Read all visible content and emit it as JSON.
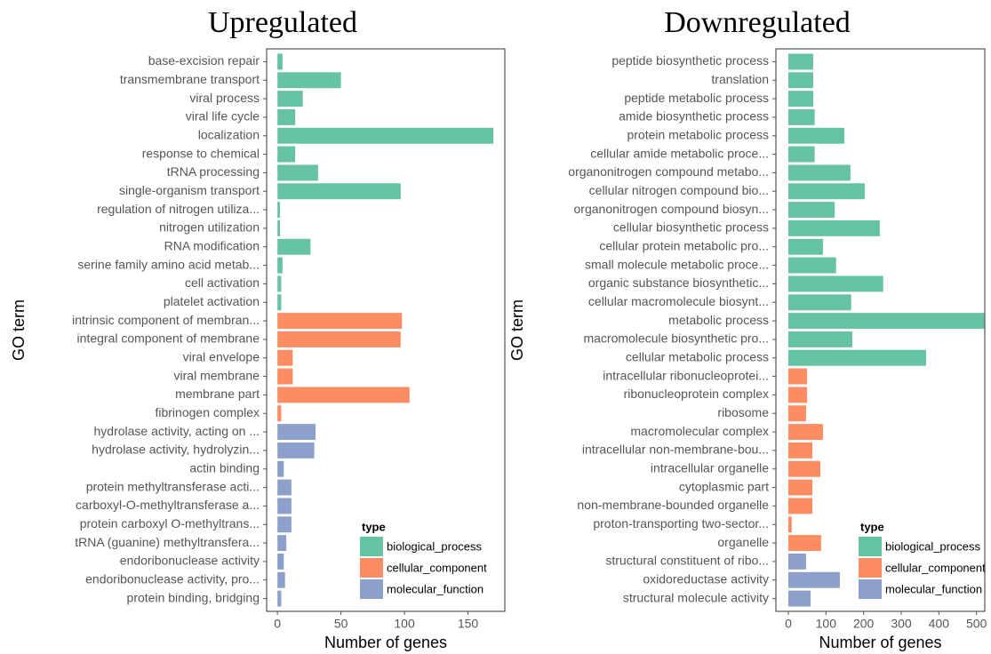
{
  "chart_data": [
    {
      "type": "barh",
      "title": "Upregulated",
      "xlabel": "Number of genes",
      "ylabel": "GO term",
      "categories": [
        "base-excision repair",
        "transmembrane transport",
        "viral process",
        "viral life cycle",
        "localization",
        "response to chemical",
        "tRNA processing",
        "single-organism transport",
        "regulation of nitrogen utiliza...",
        "nitrogen utilization",
        "RNA modification",
        "serine family amino acid metab...",
        "cell activation",
        "platelet activation",
        "intrinsic component of membran...",
        "integral component of membrane",
        "viral envelope",
        "viral membrane",
        "membrane part",
        "fibrinogen complex",
        "hydrolase activity, acting on ...",
        "hydrolase activity, hydrolyzin...",
        "actin binding",
        "protein methyltransferase acti...",
        "carboxyl-O-methyltransferase a...",
        "protein carboxyl O-methyltrans...",
        "tRNA (guanine) methyltransfera...",
        "endoribonuclease activity",
        "endoribonuclease activity, pro...",
        "protein binding, bridging"
      ],
      "legend_title": "type",
      "legend": "lower right",
      "series": [
        {
          "name": "biological_process",
          "color": "#66c2a5",
          "values": [
            4,
            50,
            20,
            14,
            170,
            14,
            32,
            97,
            2,
            2,
            26,
            4,
            3,
            3,
            null,
            null,
            null,
            null,
            null,
            null,
            null,
            null,
            null,
            null,
            null,
            null,
            null,
            null,
            null,
            null
          ]
        },
        {
          "name": "cellular_component",
          "color": "#fc8d62",
          "values": [
            null,
            null,
            null,
            null,
            null,
            null,
            null,
            null,
            null,
            null,
            null,
            null,
            null,
            null,
            98,
            97,
            12,
            12,
            104,
            3,
            null,
            null,
            null,
            null,
            null,
            null,
            null,
            null,
            null,
            null
          ]
        },
        {
          "name": "molecular_function",
          "color": "#8da0cb",
          "values": [
            null,
            null,
            null,
            null,
            null,
            null,
            null,
            null,
            null,
            null,
            null,
            null,
            null,
            null,
            null,
            null,
            null,
            null,
            null,
            null,
            30,
            29,
            5,
            11,
            11,
            11,
            7,
            5,
            6,
            3
          ]
        }
      ],
      "xlim": [
        -8.5,
        179
      ],
      "xticks": [
        0,
        50,
        100,
        150
      ]
    },
    {
      "type": "barh",
      "title": "Downregulated",
      "xlabel": "Number of genes",
      "ylabel": "GO term",
      "categories": [
        "peptide biosynthetic process",
        "translation",
        "peptide metabolic process",
        "amide biosynthetic process",
        "protein metabolic process",
        "cellular amide metabolic proce...",
        "organonitrogen compound metabo...",
        "cellular nitrogen compound bio...",
        "organonitrogen compound biosyn...",
        "cellular biosynthetic process",
        "cellular protein metabolic pro...",
        "small molecule metabolic proce...",
        "organic substance biosynthetic...",
        "cellular macromolecule biosynt...",
        "metabolic process",
        "macromolecule biosynthetic pro...",
        "cellular metabolic process",
        "intracellular ribonucleoprotei...",
        "ribonucleoprotein complex",
        "ribosome",
        "macromolecular complex",
        "intracellular non-membrane-bou...",
        "intracellular organelle",
        "cytoplasmic part",
        "non-membrane-bounded organelle",
        "proton-transporting two-sector...",
        "organelle",
        "structural constituent of ribo...",
        "oxidoreductase activity",
        "structural molecule activity"
      ],
      "legend_title": "type",
      "legend": "lower right",
      "series": [
        {
          "name": "biological_process",
          "color": "#66c2a5",
          "values": [
            66,
            66,
            66,
            70,
            149,
            70,
            165,
            203,
            123,
            243,
            92,
            127,
            252,
            167,
            521,
            170,
            366,
            null,
            null,
            null,
            null,
            null,
            null,
            null,
            null,
            null,
            null,
            null,
            null,
            null
          ]
        },
        {
          "name": "cellular_component",
          "color": "#fc8d62",
          "values": [
            null,
            null,
            null,
            null,
            null,
            null,
            null,
            null,
            null,
            null,
            null,
            null,
            null,
            null,
            null,
            null,
            null,
            50,
            50,
            47,
            92,
            64,
            85,
            64,
            64,
            9,
            87,
            null,
            null,
            null
          ]
        },
        {
          "name": "molecular_function",
          "color": "#8da0cb",
          "values": [
            null,
            null,
            null,
            null,
            null,
            null,
            null,
            null,
            null,
            null,
            null,
            null,
            null,
            null,
            null,
            null,
            null,
            null,
            null,
            null,
            null,
            null,
            null,
            null,
            null,
            null,
            null,
            47,
            137,
            59
          ]
        }
      ],
      "xlim": [
        -33,
        522
      ],
      "xticks": [
        0,
        100,
        200,
        300,
        400,
        500
      ]
    }
  ]
}
